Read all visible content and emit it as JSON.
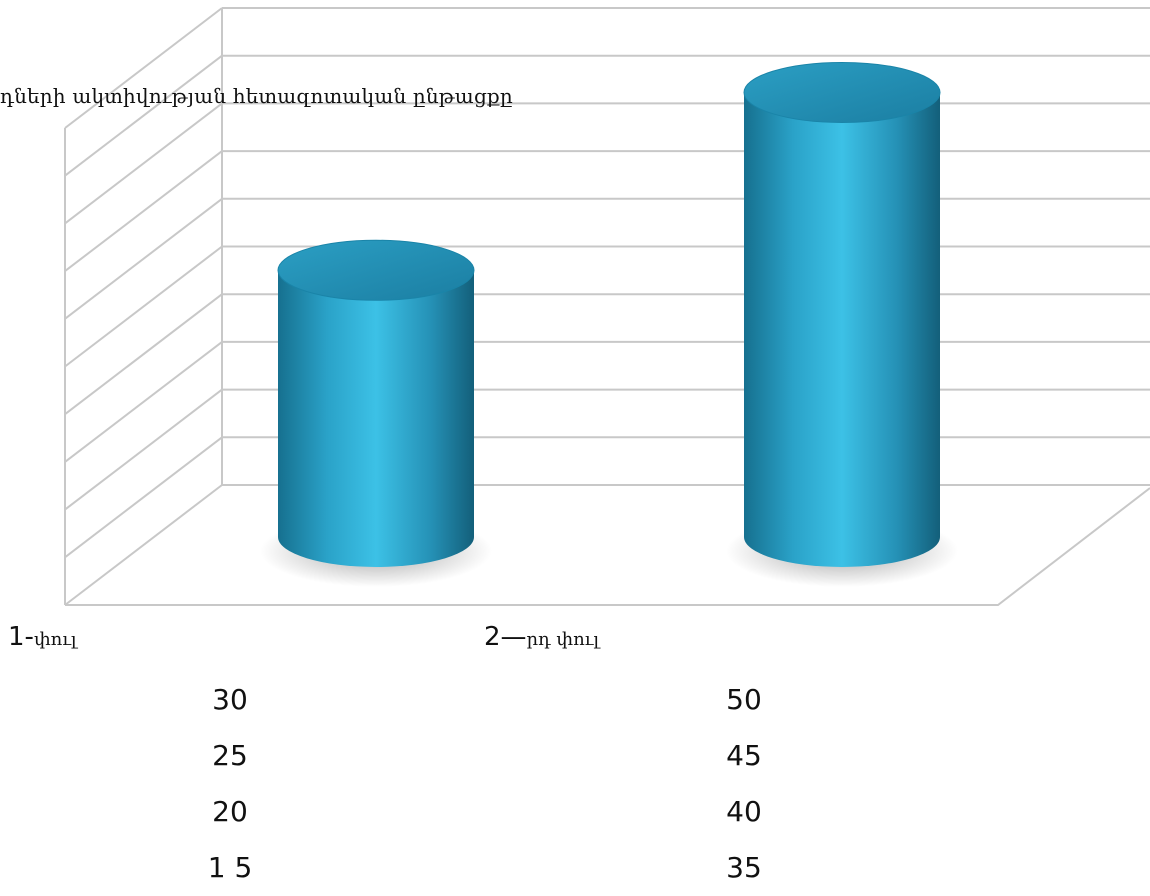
{
  "chart_data": {
    "type": "bar",
    "style": "3d-cylinder",
    "title": "դների ակտիվության հետազոտական ընթացքը",
    "categories": [
      {
        "num": "1-",
        "text": "փուլ"
      },
      {
        "num": "2—",
        "text": "րդ փուլ"
      }
    ],
    "values": [
      30,
      50
    ],
    "ylim": [
      0,
      55
    ],
    "grid": true,
    "bar_color": "#2a9ec3",
    "grid_color": "#c8c8c8"
  },
  "value_columns": [
    [
      "30",
      "25",
      "20",
      "1 5"
    ],
    [
      "50",
      "45",
      "40",
      "35"
    ]
  ]
}
